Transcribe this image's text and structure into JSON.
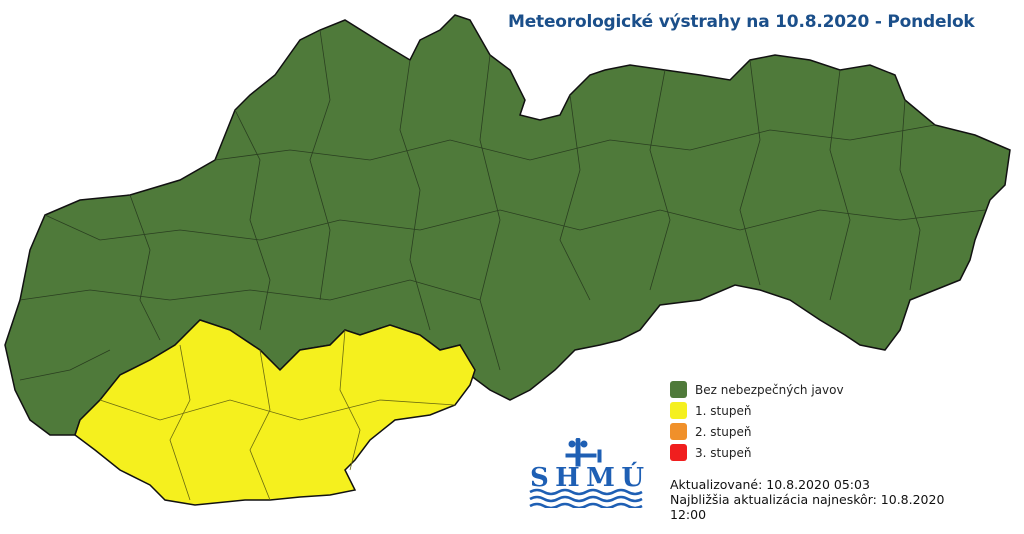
{
  "title": "Meteorologické výstrahy na 10.8.2020 - Pondelok",
  "legend": [
    {
      "label": "Bez nebezpečných javov",
      "color": "#4f7a3a"
    },
    {
      "label": "1. stupeň",
      "color": "#f5f01e"
    },
    {
      "label": "2. stupeň",
      "color": "#f0902a"
    },
    {
      "label": "3. stupeň",
      "color": "#f01e1e"
    }
  ],
  "update": {
    "updated": "Aktualizované: 10.8.2020 05:03",
    "next": "Najbližšia aktualizácia najneskôr: 10.8.2020",
    "next_time": "12:00"
  },
  "logo": {
    "text": "SHMÚ",
    "color": "#1e5fb4"
  },
  "regions": [
    {
      "name": "no-warning",
      "level": "Bez nebezpečných javov"
    },
    {
      "name": "southwest",
      "level": "1. stupeň"
    }
  ]
}
